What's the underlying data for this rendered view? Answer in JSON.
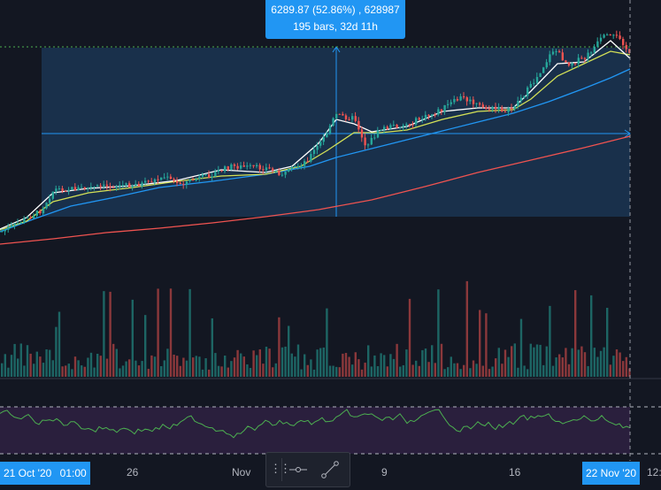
{
  "measure": {
    "line1": "6289.87 (52.86%) , 628987",
    "line2": "195 bars, 32d 11h"
  },
  "time_axis": {
    "start_date": "21 Oct '20",
    "start_time": "01:00",
    "labels": [
      "26",
      "Nov",
      "9",
      "16"
    ],
    "end_date": "22 Nov '20",
    "end_time_partial": "12:"
  },
  "drawing_toolbar": {
    "grip_icon": "drag-handle-icon",
    "tools": [
      "horizontal-line-icon",
      "trend-line-icon"
    ]
  },
  "colors": {
    "background": "#131722",
    "accent": "#2196f3",
    "candle_up": "#26a69a",
    "candle_down": "#ef5350",
    "ma_short": "#ffffff",
    "ma_mid": "#d4e157",
    "ma_long": "#2196f3",
    "ma_200": "#ef5350",
    "oscillator_line": "#4caf50",
    "oscillator_band": "#2a1f3d"
  }
}
